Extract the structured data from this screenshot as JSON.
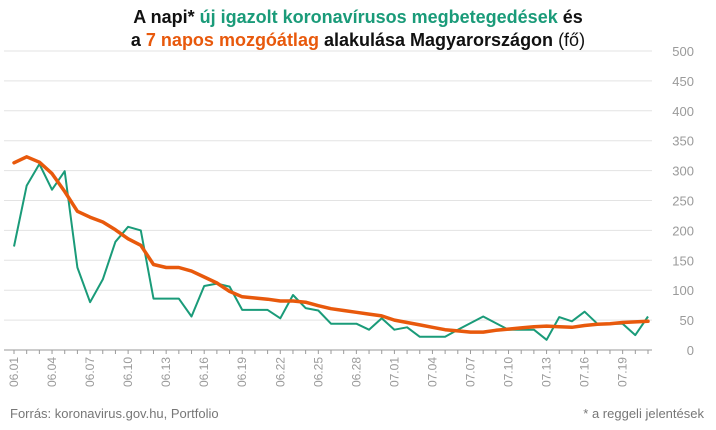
{
  "title": {
    "line1_pre": "A napi",
    "line1_star": "* ",
    "line1_green": "új igazolt koronavírusos megbetegedések",
    "line1_post": " és",
    "line2_pre": "a ",
    "line2_orange": "7 napos mozgóátlag",
    "line2_post": " alakulása Magyarországon",
    "line2_unit": " (fő)"
  },
  "source": "Forrás: koronavirus.gov.hu, Portfolio",
  "footnote": "* a reggeli jelentések",
  "colors": {
    "daily": "#1a9b79",
    "average": "#e8590c",
    "grid": "#e3e3e3",
    "axis": "#9a9a9a"
  },
  "chart_data": {
    "type": "line",
    "x": [
      "06.01",
      "06.02",
      "06.03",
      "06.04",
      "06.05",
      "06.06",
      "06.07",
      "06.08",
      "06.09",
      "06.10",
      "06.11",
      "06.12",
      "06.13",
      "06.14",
      "06.15",
      "06.16",
      "06.17",
      "06.18",
      "06.19",
      "06.20",
      "06.21",
      "06.22",
      "06.23",
      "06.24",
      "06.25",
      "06.26",
      "06.27",
      "06.28",
      "06.29",
      "06.30",
      "07.01",
      "07.02",
      "07.03",
      "07.04",
      "07.05",
      "07.06",
      "07.07",
      "07.08",
      "07.09",
      "07.10",
      "07.11",
      "07.12",
      "07.13",
      "07.14",
      "07.15",
      "07.16",
      "07.17",
      "07.18",
      "07.19",
      "07.20",
      "07.21"
    ],
    "tick_labels": [
      "06.01",
      "06.04",
      "06.07",
      "06.10",
      "06.13",
      "06.16",
      "06.19",
      "06.22",
      "06.25",
      "06.28",
      "07.01",
      "07.04",
      "07.07",
      "07.10",
      "07.13",
      "07.16",
      "07.19"
    ],
    "series": [
      {
        "values": [
          173,
          275,
          311,
          268,
          299,
          138,
          80,
          118,
          181,
          206,
          200,
          86,
          86,
          86,
          56,
          107,
          111,
          106,
          67,
          67,
          67,
          53,
          92,
          70,
          66,
          44,
          44,
          44,
          34,
          53,
          34,
          38,
          22,
          22,
          22,
          34,
          45,
          56,
          45,
          34,
          34,
          34,
          17,
          55,
          48,
          64,
          44,
          44,
          44,
          25,
          56
        ]
      },
      {
        "values": [
          313,
          323,
          314,
          295,
          265,
          232,
          222,
          214,
          201,
          186,
          175,
          143,
          138,
          138,
          132,
          122,
          112,
          98,
          89,
          87,
          85,
          82,
          82,
          80,
          74,
          69,
          66,
          63,
          60,
          57,
          50,
          46,
          42,
          38,
          34,
          32,
          30,
          30,
          33,
          35,
          37,
          39,
          40,
          39,
          38,
          41,
          43,
          44,
          46,
          47,
          48
        ]
      }
    ],
    "ylim": [
      0,
      500
    ],
    "yticks": [
      0,
      50,
      100,
      150,
      200,
      250,
      300,
      350,
      400,
      450,
      500
    ],
    "grid": true,
    "legend": "none"
  }
}
